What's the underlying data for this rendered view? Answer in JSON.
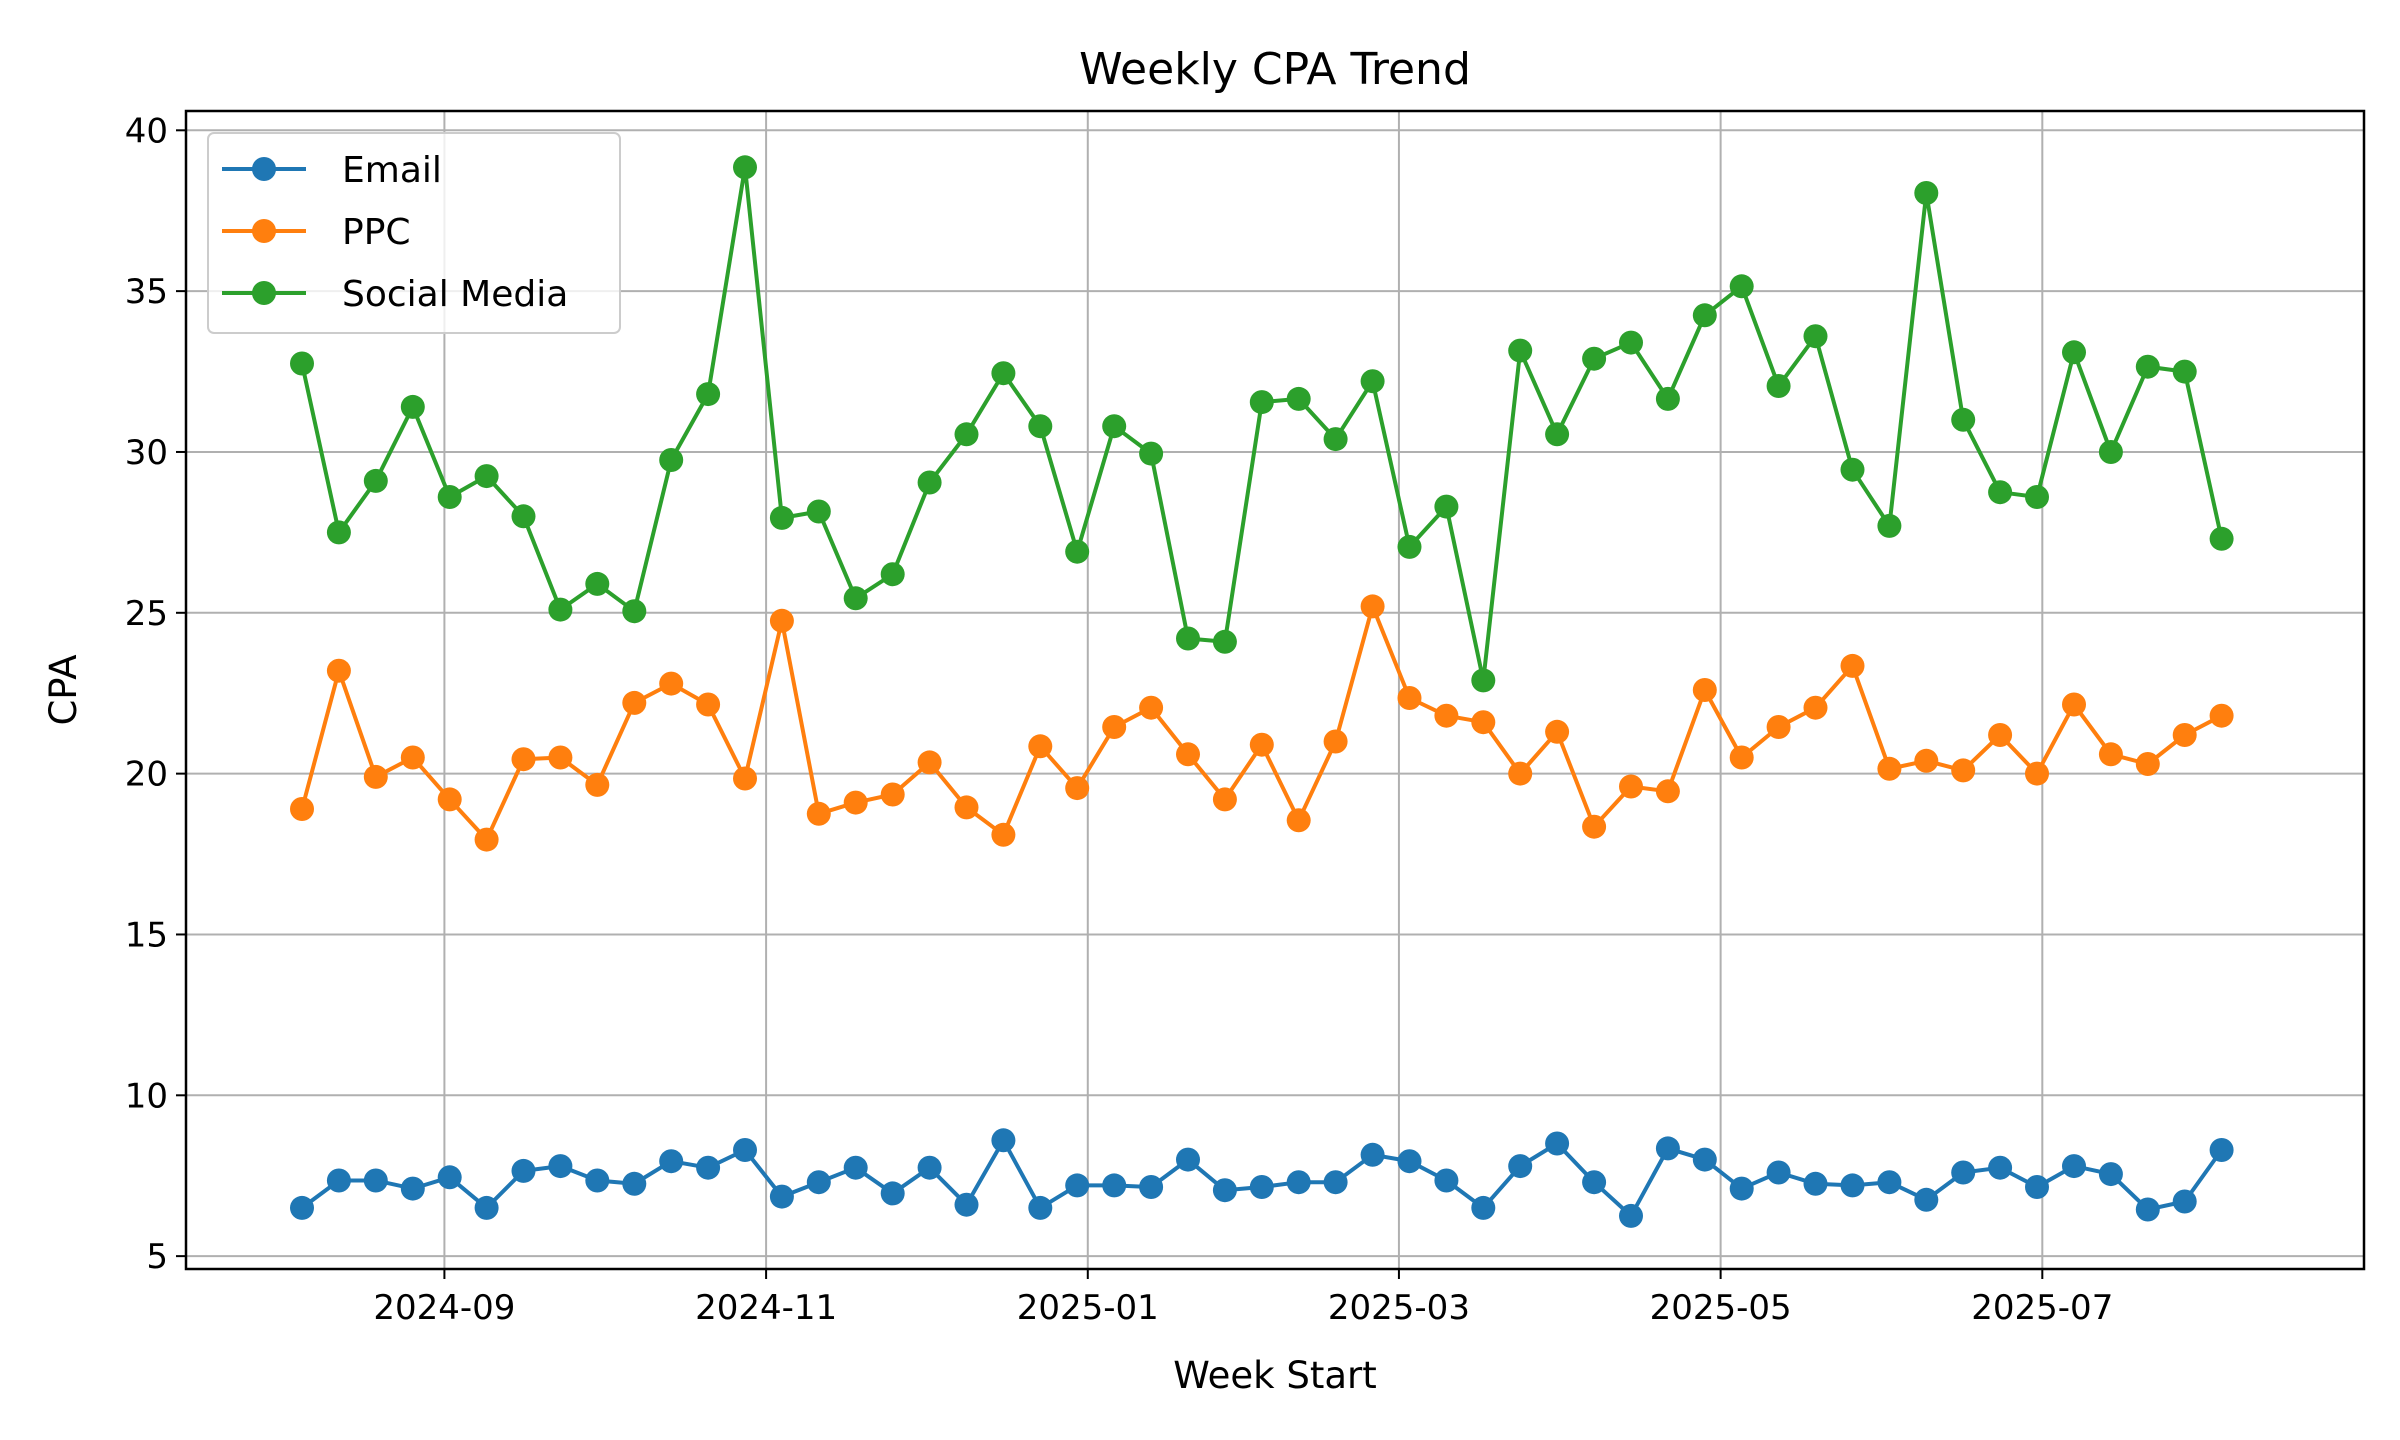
{
  "chart_data": {
    "type": "line",
    "title": "Weekly CPA Trend",
    "xlabel": "Week Start",
    "ylabel": "CPA",
    "x_start": "2024-08-05",
    "x_step_days": 7,
    "x_range": [
      "2024-07-14",
      "2025-08-31"
    ],
    "x_ticks": [
      "2024-09-01",
      "2024-11-01",
      "2025-01-01",
      "2025-03-01",
      "2025-05-01",
      "2025-07-01"
    ],
    "x_tick_labels": [
      "2024-09",
      "2024-11",
      "2025-01",
      "2025-03",
      "2025-05",
      "2025-07"
    ],
    "ylim": [
      4.6,
      40.6
    ],
    "y_ticks": [
      5,
      10,
      15,
      20,
      25,
      30,
      35,
      40
    ],
    "y_tick_labels": [
      "5",
      "10",
      "15",
      "20",
      "25",
      "30",
      "35",
      "40"
    ],
    "grid": true,
    "legend_position": "top-left",
    "series": [
      {
        "name": "Email",
        "color": "#1f77b4",
        "values": [
          6.5,
          7.35,
          7.35,
          7.1,
          7.45,
          6.5,
          7.65,
          7.8,
          7.35,
          7.25,
          7.95,
          7.75,
          8.3,
          6.85,
          7.3,
          7.75,
          6.95,
          7.75,
          6.6,
          8.6,
          6.5,
          7.2,
          7.2,
          7.15,
          8.0,
          7.05,
          7.15,
          7.3,
          7.3,
          8.15,
          7.95,
          7.35,
          6.5,
          7.8,
          8.5,
          7.3,
          6.25,
          8.35,
          8.0,
          7.1,
          7.6,
          7.25,
          7.2,
          7.3,
          6.75,
          7.6,
          7.75,
          7.15,
          7.8,
          7.55,
          6.45,
          6.7,
          8.3
        ]
      },
      {
        "name": "PPC",
        "color": "#ff7f0e",
        "values": [
          18.9,
          23.2,
          19.9,
          20.5,
          19.2,
          17.95,
          20.45,
          20.5,
          19.65,
          22.2,
          22.8,
          22.15,
          19.85,
          24.75,
          18.75,
          19.1,
          19.35,
          20.35,
          18.95,
          18.1,
          20.85,
          19.55,
          21.45,
          22.05,
          20.6,
          19.2,
          20.9,
          18.55,
          21.0,
          25.2,
          22.35,
          21.8,
          21.6,
          20.0,
          21.3,
          18.35,
          19.6,
          19.45,
          22.6,
          20.5,
          21.45,
          22.05,
          23.35,
          20.15,
          20.4,
          20.1,
          21.2,
          20.0,
          22.15,
          20.6,
          20.3,
          21.2,
          21.8
        ]
      },
      {
        "name": "Social Media",
        "color": "#2ca02c",
        "values": [
          32.75,
          27.5,
          29.1,
          31.4,
          28.6,
          29.25,
          28.0,
          25.1,
          25.9,
          25.05,
          29.75,
          31.8,
          38.85,
          27.95,
          28.15,
          25.45,
          26.2,
          29.05,
          30.55,
          32.45,
          30.8,
          26.9,
          30.8,
          29.95,
          24.2,
          24.1,
          31.55,
          31.65,
          30.4,
          32.2,
          27.05,
          28.3,
          22.9,
          33.15,
          30.55,
          32.9,
          33.4,
          31.65,
          34.25,
          35.15,
          32.05,
          33.6,
          29.45,
          27.7,
          38.05,
          31.0,
          28.75,
          28.6,
          33.1,
          30.0,
          32.65,
          32.5,
          27.3
        ]
      }
    ]
  }
}
